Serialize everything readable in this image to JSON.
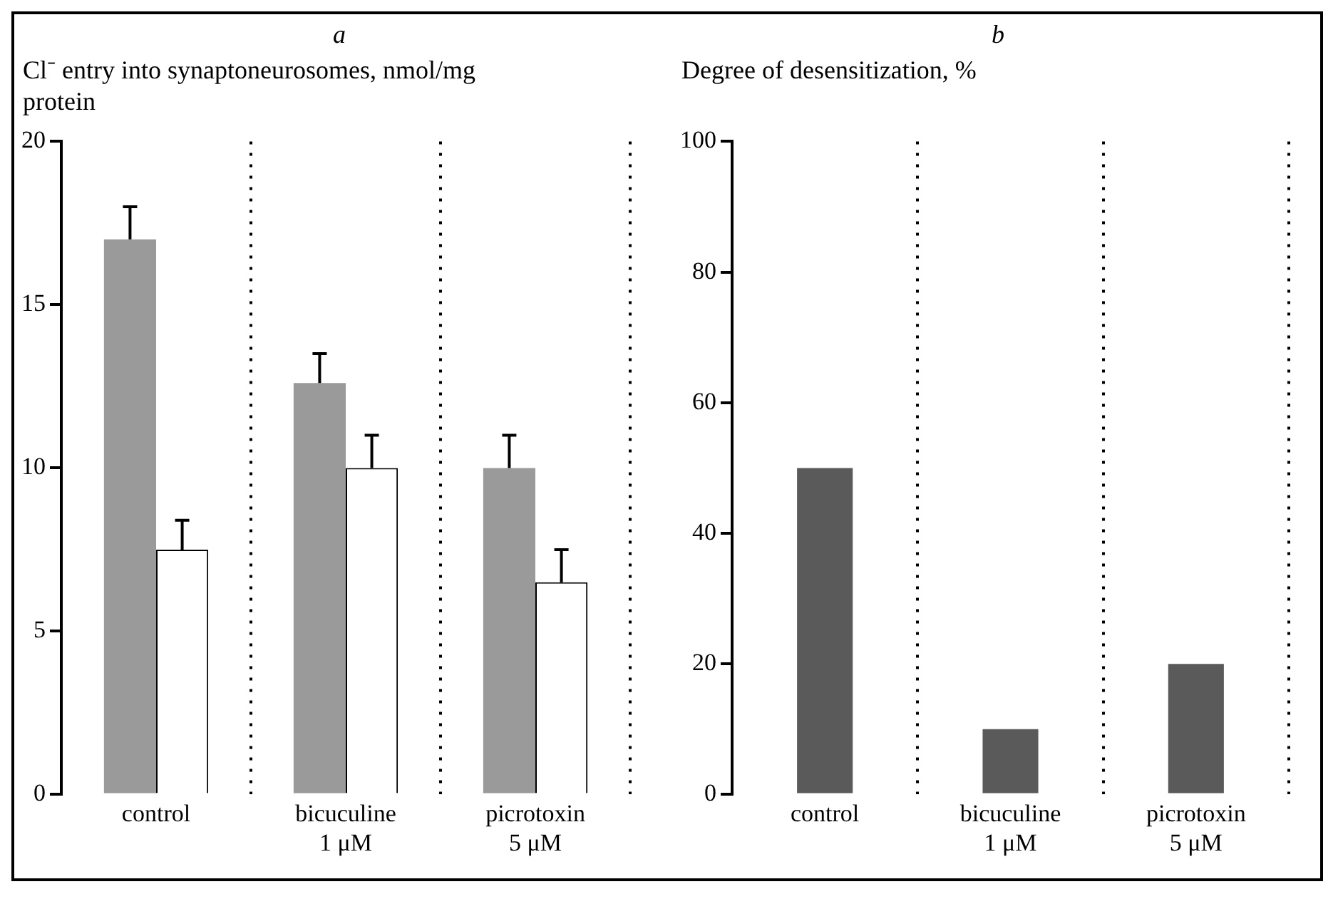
{
  "chart_data": [
    {
      "type": "bar",
      "title": "a",
      "ylabel": "Cl⁻ entry into synaptoneurosomes, nmol/mg protein",
      "categories": [
        "control",
        "bicuculine\n1 μM",
        "picrotoxin\n5 μM"
      ],
      "series": [
        {
          "color": "#9a9a9a",
          "values": [
            17,
            12.6,
            10
          ],
          "errors": [
            1,
            0.9,
            1
          ]
        },
        {
          "color": "#ffffff",
          "values": [
            7.5,
            10,
            6.5
          ],
          "errors": [
            0.9,
            1,
            1
          ]
        }
      ],
      "ylim": [
        0,
        20
      ],
      "yticks": [
        0,
        5,
        10,
        15,
        20
      ],
      "grid": "x"
    },
    {
      "type": "bar",
      "title": "b",
      "ylabel": "Degree of desensitization, %",
      "categories": [
        "control",
        "bicuculine\n1 μM",
        "picrotoxin\n5 μM"
      ],
      "values": [
        50,
        10,
        20
      ],
      "color": "#5a5a5a",
      "ylim": [
        0,
        100
      ],
      "yticks": [
        0,
        20,
        40,
        60,
        80,
        100
      ],
      "grid": "x"
    }
  ]
}
